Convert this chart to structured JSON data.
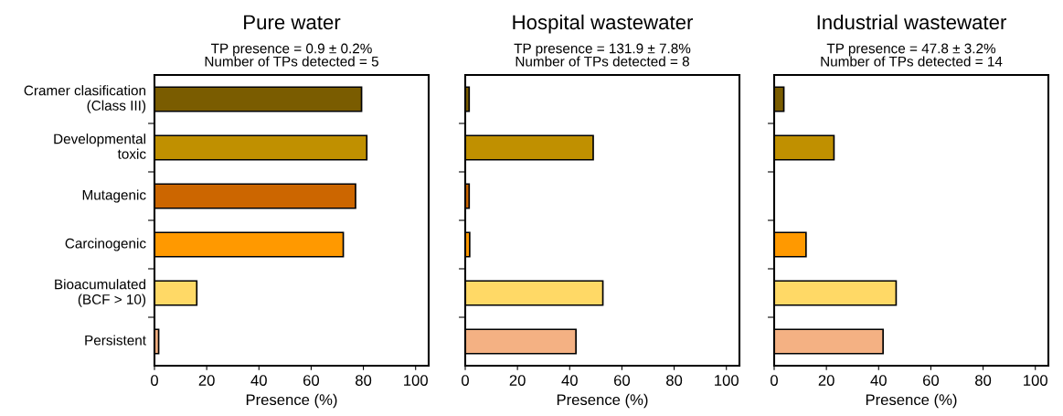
{
  "chart_data": [
    {
      "type": "bar",
      "orientation": "horizontal",
      "title": "Pure water",
      "subtitle": "TP presence = 0.9 ± 0.2%\nNumber of TPs detected = 5",
      "xlabel": "Presence (%)",
      "categories": [
        "Cramer clasification\n(Class III)",
        "Developmental\ntoxic",
        "Mutagenic",
        "Carcinogenic",
        "Bioacumulated\n(BCF > 10)",
        "Persistent"
      ],
      "values": [
        79.3,
        81.3,
        77,
        72.3,
        16.2,
        1.6
      ],
      "colors": [
        "#7a5c00",
        "#c09000",
        "#cc6600",
        "#ff9900",
        "#ffd966",
        "#f4b183"
      ],
      "xlim": [
        0,
        105
      ],
      "xticks": [
        0,
        20,
        40,
        60,
        80,
        100
      ],
      "grid": false
    },
    {
      "type": "bar",
      "orientation": "horizontal",
      "title": "Hospital wastewater",
      "subtitle": "TP presence = 131.9 ± 7.8%\nNumber of TPs detected = 8",
      "xlabel": "Presence (%)",
      "categories": [
        null,
        null,
        null,
        null,
        null,
        null
      ],
      "values": [
        1.5,
        49,
        1.5,
        1.7,
        52.7,
        42.4
      ],
      "colors": [
        "#7a5c00",
        "#c09000",
        "#cc6600",
        "#ff9900",
        "#ffd966",
        "#f4b183"
      ],
      "xlim": [
        0,
        105
      ],
      "xticks": [
        0,
        20,
        40,
        60,
        80,
        100
      ],
      "tick_labels": "x",
      "grid": false
    },
    {
      "type": "bar",
      "orientation": "horizontal",
      "title": "Industrial wastewater",
      "subtitle": "TP presence = 47.8 ± 3.2%\nNumber of TPs detected = 14",
      "xlabel": "Presence (%)",
      "categories": [
        null,
        null,
        null,
        null,
        null,
        null
      ],
      "values": [
        3.7,
        22.9,
        null,
        12.2,
        46.7,
        41.7
      ],
      "colors": [
        "#7a5c00",
        "#c09000",
        "#cc6600",
        "#ff9900",
        "#ffd966",
        "#f4b183"
      ],
      "xlim": [
        0,
        105
      ],
      "xticks": [
        0,
        20,
        40,
        60,
        80,
        100
      ],
      "tick_labels": "x",
      "grid": false
    }
  ]
}
